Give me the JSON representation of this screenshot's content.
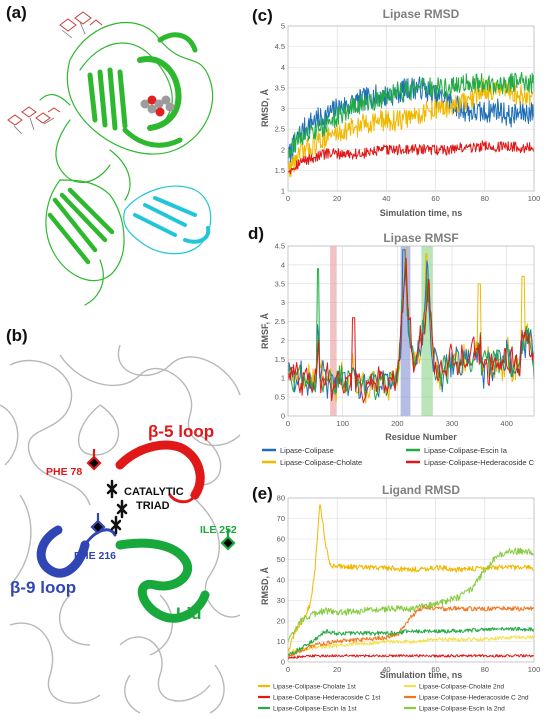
{
  "panels": {
    "a": "(a)",
    "b": "(b)",
    "c": "(c)",
    "d": "d)",
    "e": "(e)"
  },
  "structure_b": {
    "beta5_loop": "β-5 loop",
    "phe78": "PHE 78",
    "catalytic_triad_1": "CATALYTIC",
    "catalytic_triad_2": "TRIAD",
    "ile252": "ILE 252",
    "phe216": "PHE 216",
    "beta9_loop": "β-9 loop",
    "lid": "Lid"
  },
  "colors": {
    "blue": "#1f6fb8",
    "yellow": "#f2b800",
    "green": "#22aa44",
    "red": "#e01818",
    "orange": "#f07820",
    "lightgreen": "#88cc44",
    "protein_green": "#2db82d",
    "protein_cyan": "#22c6d8"
  },
  "chart_data": [
    {
      "id": "c",
      "type": "line",
      "title": "Lipase RMSD",
      "xlabel": "Simulation time, ns",
      "ylabel": "RMSD, Å",
      "xlim": [
        0,
        100
      ],
      "ylim": [
        1,
        5
      ],
      "xticks": [
        0,
        20,
        40,
        60,
        80,
        100
      ],
      "yticks": [
        1,
        1.5,
        2,
        2.5,
        3,
        3.5,
        4,
        4.5,
        5
      ],
      "grid": true,
      "series": [
        {
          "name": "Lipase-Colipase",
          "color": "#1f6fb8",
          "x": [
            0,
            5,
            10,
            15,
            20,
            25,
            30,
            35,
            40,
            45,
            50,
            55,
            60,
            65,
            70,
            75,
            80,
            85,
            90,
            95,
            100
          ],
          "values": [
            1.8,
            2.4,
            2.7,
            2.8,
            3.0,
            3.1,
            3.2,
            3.3,
            3.3,
            3.4,
            3.5,
            3.5,
            3.3,
            3.2,
            3.0,
            2.9,
            2.9,
            3.0,
            2.8,
            2.9,
            2.9
          ],
          "noise": 0.28
        },
        {
          "name": "Lipase-Colipase-Cholate",
          "color": "#f2b800",
          "x": [
            0,
            5,
            10,
            15,
            20,
            25,
            30,
            35,
            40,
            45,
            50,
            55,
            60,
            65,
            70,
            75,
            80,
            85,
            90,
            95,
            100
          ],
          "values": [
            1.5,
            1.9,
            2.1,
            2.3,
            2.4,
            2.5,
            2.6,
            2.7,
            2.7,
            2.7,
            2.8,
            2.9,
            3.0,
            3.0,
            3.1,
            3.2,
            3.5,
            3.4,
            3.4,
            3.3,
            3.3
          ],
          "noise": 0.26
        },
        {
          "name": "Lipase-Colipase-Escin Ia",
          "color": "#22aa44",
          "x": [
            0,
            5,
            10,
            15,
            20,
            25,
            30,
            35,
            40,
            45,
            50,
            55,
            60,
            65,
            70,
            75,
            80,
            85,
            90,
            95,
            100
          ],
          "values": [
            2.0,
            2.3,
            2.4,
            2.6,
            2.8,
            3.0,
            3.1,
            3.2,
            3.3,
            3.4,
            3.4,
            3.5,
            3.5,
            3.5,
            3.6,
            3.6,
            3.6,
            3.6,
            3.6,
            3.7,
            3.6
          ],
          "noise": 0.25
        },
        {
          "name": "Lipase-Colipase-Hederacoside C",
          "color": "#e01818",
          "x": [
            0,
            5,
            10,
            15,
            20,
            25,
            30,
            35,
            40,
            45,
            50,
            55,
            60,
            65,
            70,
            75,
            80,
            85,
            90,
            95,
            100
          ],
          "values": [
            1.5,
            1.7,
            1.8,
            1.9,
            1.9,
            1.9,
            1.9,
            1.95,
            2.0,
            2.0,
            2.0,
            2.0,
            2.0,
            2.0,
            2.05,
            2.05,
            2.1,
            2.05,
            2.1,
            2.05,
            2.05
          ],
          "noise": 0.13
        }
      ]
    },
    {
      "id": "d",
      "type": "line",
      "title": "Lipase RMSF",
      "xlabel": "Residue Number",
      "ylabel": "RMSF, Å",
      "xlim": [
        0,
        450
      ],
      "ylim": [
        0,
        4.5
      ],
      "xticks": [
        0,
        100,
        200,
        300,
        400
      ],
      "yticks": [
        0,
        0.5,
        1,
        1.5,
        2,
        2.5,
        3,
        3.5,
        4,
        4.5
      ],
      "grid": true,
      "highlights": [
        {
          "x0": 77,
          "x1": 89,
          "color": "#e89090"
        },
        {
          "x0": 206,
          "x1": 224,
          "color": "#7a86d0"
        },
        {
          "x0": 244,
          "x1": 265,
          "color": "#80d080"
        }
      ],
      "series": [
        {
          "name": "Lipase-Colipase",
          "color": "#1f6fb8"
        },
        {
          "name": "Lipase-Colipase-Cholate",
          "color": "#f2b800"
        },
        {
          "name": "Lipase-Colipase-Escin Ia",
          "color": "#22aa44"
        },
        {
          "name": "Lipase-Colipase-Hederacoside C",
          "color": "#e01818"
        }
      ],
      "base": {
        "x": [
          0,
          20,
          40,
          60,
          80,
          100,
          120,
          140,
          160,
          180,
          200,
          210,
          215,
          220,
          230,
          250,
          255,
          265,
          280,
          300,
          320,
          340,
          360,
          380,
          400,
          420,
          440,
          450
        ],
        "values": [
          1.2,
          1.0,
          0.9,
          1.1,
          0.8,
          1.0,
          0.9,
          0.8,
          0.9,
          0.9,
          1.0,
          2.8,
          4.3,
          2.5,
          1.2,
          2.5,
          4.0,
          1.5,
          1.1,
          1.5,
          1.4,
          1.6,
          1.3,
          1.4,
          1.6,
          1.3,
          2.2,
          1.4
        ]
      },
      "spikes": [
        {
          "x": 55,
          "y": 3.9,
          "series": 2
        },
        {
          "x": 120,
          "y": 2.6,
          "series": 3
        },
        {
          "x": 212,
          "y": 4.4,
          "series": 0
        },
        {
          "x": 253,
          "y": 4.3,
          "series": 1
        },
        {
          "x": 350,
          "y": 3.5,
          "series": 1
        },
        {
          "x": 430,
          "y": 3.7,
          "series": 1
        }
      ]
    },
    {
      "id": "e",
      "type": "line",
      "title": "Ligand RMSD",
      "xlabel": "Simulation time, ns",
      "ylabel": "RMSD, Å",
      "xlim": [
        0,
        100
      ],
      "ylim": [
        0,
        80
      ],
      "xticks": [
        0,
        20,
        40,
        60,
        80,
        100
      ],
      "yticks": [
        0,
        10,
        20,
        30,
        40,
        50,
        60,
        70,
        80
      ],
      "grid": true,
      "series": [
        {
          "name": "Lipase-Colipase-Cholate 1st",
          "color": "#f2b800",
          "x": [
            0,
            3,
            6,
            9,
            11,
            13,
            15,
            17,
            20,
            30,
            40,
            50,
            60,
            70,
            80,
            90,
            100
          ],
          "values": [
            5,
            15,
            20,
            28,
            45,
            78,
            60,
            47,
            47,
            46,
            46,
            45,
            46,
            45,
            46,
            46,
            46
          ],
          "noise": 1.3
        },
        {
          "name": "Lipase-Colipase-Cholate 2nd",
          "color": "#f5e04a",
          "x": [
            0,
            10,
            20,
            30,
            40,
            50,
            60,
            70,
            80,
            90,
            100
          ],
          "values": [
            5,
            7,
            8,
            9,
            10,
            10,
            11,
            11,
            11,
            12,
            12
          ],
          "noise": 0.9
        },
        {
          "name": "Lipase-Colipase-Hederacoside C 1st",
          "color": "#e01818",
          "x": [
            0,
            10,
            20,
            30,
            40,
            50,
            60,
            70,
            80,
            90,
            100
          ],
          "values": [
            2,
            3,
            3,
            3,
            3,
            3,
            3,
            3,
            3,
            3,
            3
          ],
          "noise": 0.6
        },
        {
          "name": "Lipase-Colipase-Hederacoside C 2nd",
          "color": "#f07820",
          "x": [
            0,
            10,
            20,
            30,
            40,
            45,
            50,
            55,
            60,
            70,
            80,
            90,
            100
          ],
          "values": [
            3,
            8,
            10,
            11,
            12,
            14,
            22,
            27,
            26,
            26,
            26,
            26,
            26
          ],
          "noise": 1.1
        },
        {
          "name": "Lipase-Colipase-Escin Ia 1st",
          "color": "#22aa44",
          "x": [
            0,
            10,
            15,
            20,
            30,
            40,
            50,
            60,
            70,
            80,
            90,
            100
          ],
          "values": [
            3,
            10,
            15,
            14,
            14,
            14,
            15,
            15,
            15,
            16,
            16,
            16
          ],
          "noise": 1.0
        },
        {
          "name": "Lipase-Colipase-Escin Ia  2nd",
          "color": "#88cc44",
          "x": [
            0,
            5,
            10,
            15,
            20,
            30,
            40,
            50,
            60,
            65,
            70,
            75,
            80,
            85,
            90,
            95,
            100
          ],
          "values": [
            10,
            20,
            23,
            25,
            24,
            25,
            26,
            26,
            28,
            30,
            32,
            36,
            45,
            52,
            54,
            54,
            53
          ],
          "noise": 1.6
        }
      ]
    }
  ]
}
